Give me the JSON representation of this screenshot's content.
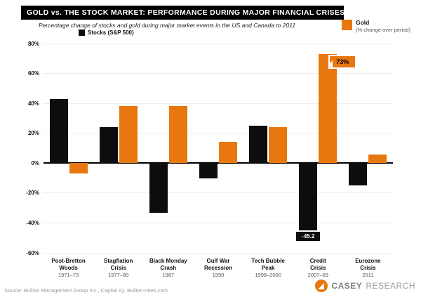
{
  "header": {
    "title": "GOLD vs. THE STOCK MARKET: PERFORMANCE DURING MAJOR FINANCIAL CRISES",
    "subtitle": "Percentage change of stocks and gold during major market events in the US and Canada to 2011"
  },
  "legend": {
    "stocks_label": "Stocks (S&P 500)",
    "gold_label": "Gold",
    "gold_sublabel": "(% change over period)"
  },
  "chart_data": {
    "type": "bar",
    "title": "GOLD vs. THE STOCK MARKET: PERFORMANCE DURING MAJOR FINANCIAL CRISES",
    "categories": [
      "Post-Bretton\nWoods",
      "Stagflation\nCrisis",
      "Black Monday\nCrash",
      "Gulf War\nRecession",
      "Tech Bubble\nPeak",
      "Credit\nCrisis",
      "Eurozone\nCrisis"
    ],
    "category_dates": [
      "1971–73",
      "1977–80",
      "1987",
      "1990",
      "1998–2000",
      "2007–09",
      "2011"
    ],
    "series": [
      {
        "name": "Stocks",
        "color": "#0d0d0d",
        "values": [
          43,
          24,
          -33,
          -10,
          25,
          -45.2,
          -15
        ]
      },
      {
        "name": "Gold",
        "color": "#E8770F",
        "values": [
          -7,
          38,
          38,
          14,
          24,
          73,
          6
        ]
      }
    ],
    "xlabel": "",
    "ylabel": "",
    "ylim": [
      -60,
      80
    ],
    "yticks": [
      80,
      60,
      40,
      20,
      0,
      -20,
      -40,
      -60
    ],
    "ytick_suffix": "%",
    "grid": true,
    "legend_position": "top-right",
    "annotations": [
      {
        "series": 1,
        "index": 5,
        "text": "73%",
        "style": "callout-orange"
      },
      {
        "series": 0,
        "index": 5,
        "text": "-45.2",
        "style": "tag-black"
      }
    ]
  },
  "footer": {
    "source": "Source: Bullion Management Group Inc., Capital IQ, Bullion-rates.com",
    "brand_word1": "Casey",
    "brand_word2": "Research"
  }
}
